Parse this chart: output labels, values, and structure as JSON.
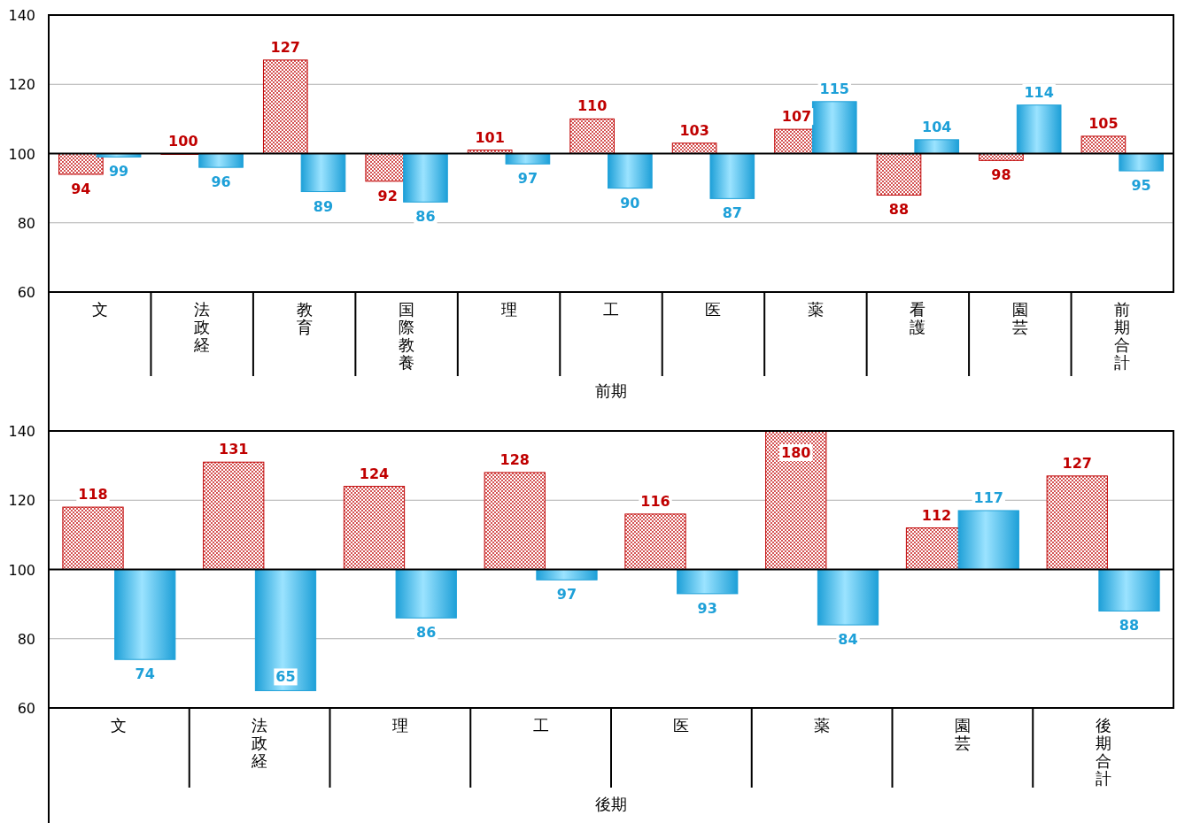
{
  "chart_data": [
    {
      "type": "bar",
      "xlabel": "前期",
      "categories": [
        "文",
        "法政経",
        "教育",
        "国際教養",
        "理",
        "工",
        "医",
        "薬",
        "看護",
        "園芸",
        "前期合計"
      ],
      "series": [
        {
          "color": "#c00000",
          "base": [
            100,
            100,
            100,
            100,
            100,
            100,
            100,
            100,
            100,
            100,
            100
          ],
          "values": [
            -6,
            0,
            27,
            -8,
            1,
            10,
            3,
            7,
            -12,
            -2,
            5
          ],
          "value_labels": [
            "94",
            "100",
            "127",
            "92",
            "101",
            "110",
            "103",
            "107",
            "88",
            "98",
            "105"
          ]
        },
        {
          "color": "#1ea0d8",
          "base": [
            100,
            100,
            100,
            100,
            100,
            100,
            100,
            100,
            100,
            100,
            100
          ],
          "values": [
            -1,
            -4,
            -11,
            -14,
            -3,
            -10,
            -13,
            15,
            4,
            14,
            -5
          ],
          "value_labels": [
            "99",
            "96",
            "89",
            "86",
            "97",
            "90",
            "87",
            "115",
            "104",
            "114",
            "95"
          ]
        }
      ],
      "ylim": [
        60,
        140
      ],
      "yticks": [
        60,
        80,
        100,
        120,
        140
      ],
      "grid": "y",
      "ref_lines": [
        {
          "axis": "y",
          "value": 100,
          "color": "#000000"
        }
      ]
    },
    {
      "type": "bar",
      "xlabel": "後期",
      "categories": [
        "文",
        "法政経",
        "理",
        "工",
        "医",
        "薬",
        "園芸",
        "後期合計"
      ],
      "series": [
        {
          "color": "#c00000",
          "base": [
            100,
            100,
            100,
            100,
            100,
            100,
            100,
            100
          ],
          "values": [
            18,
            31,
            24,
            28,
            16,
            80,
            12,
            27
          ],
          "value_labels": [
            "118",
            "131",
            "124",
            "128",
            "116",
            "180",
            "112",
            "127"
          ]
        },
        {
          "color": "#1ea0d8",
          "base": [
            100,
            100,
            100,
            100,
            100,
            100,
            100,
            100
          ],
          "values": [
            -26,
            -35,
            -14,
            -3,
            -7,
            -16,
            17,
            -12
          ],
          "value_labels": [
            "74",
            "65",
            "86",
            "97",
            "93",
            "84",
            "117",
            "88"
          ]
        }
      ],
      "ylim": [
        60,
        140
      ],
      "yticks": [
        60,
        80,
        100,
        120,
        140
      ],
      "grid": "y",
      "ref_lines": [
        {
          "axis": "y",
          "value": 100,
          "color": "#000000"
        }
      ]
    }
  ]
}
